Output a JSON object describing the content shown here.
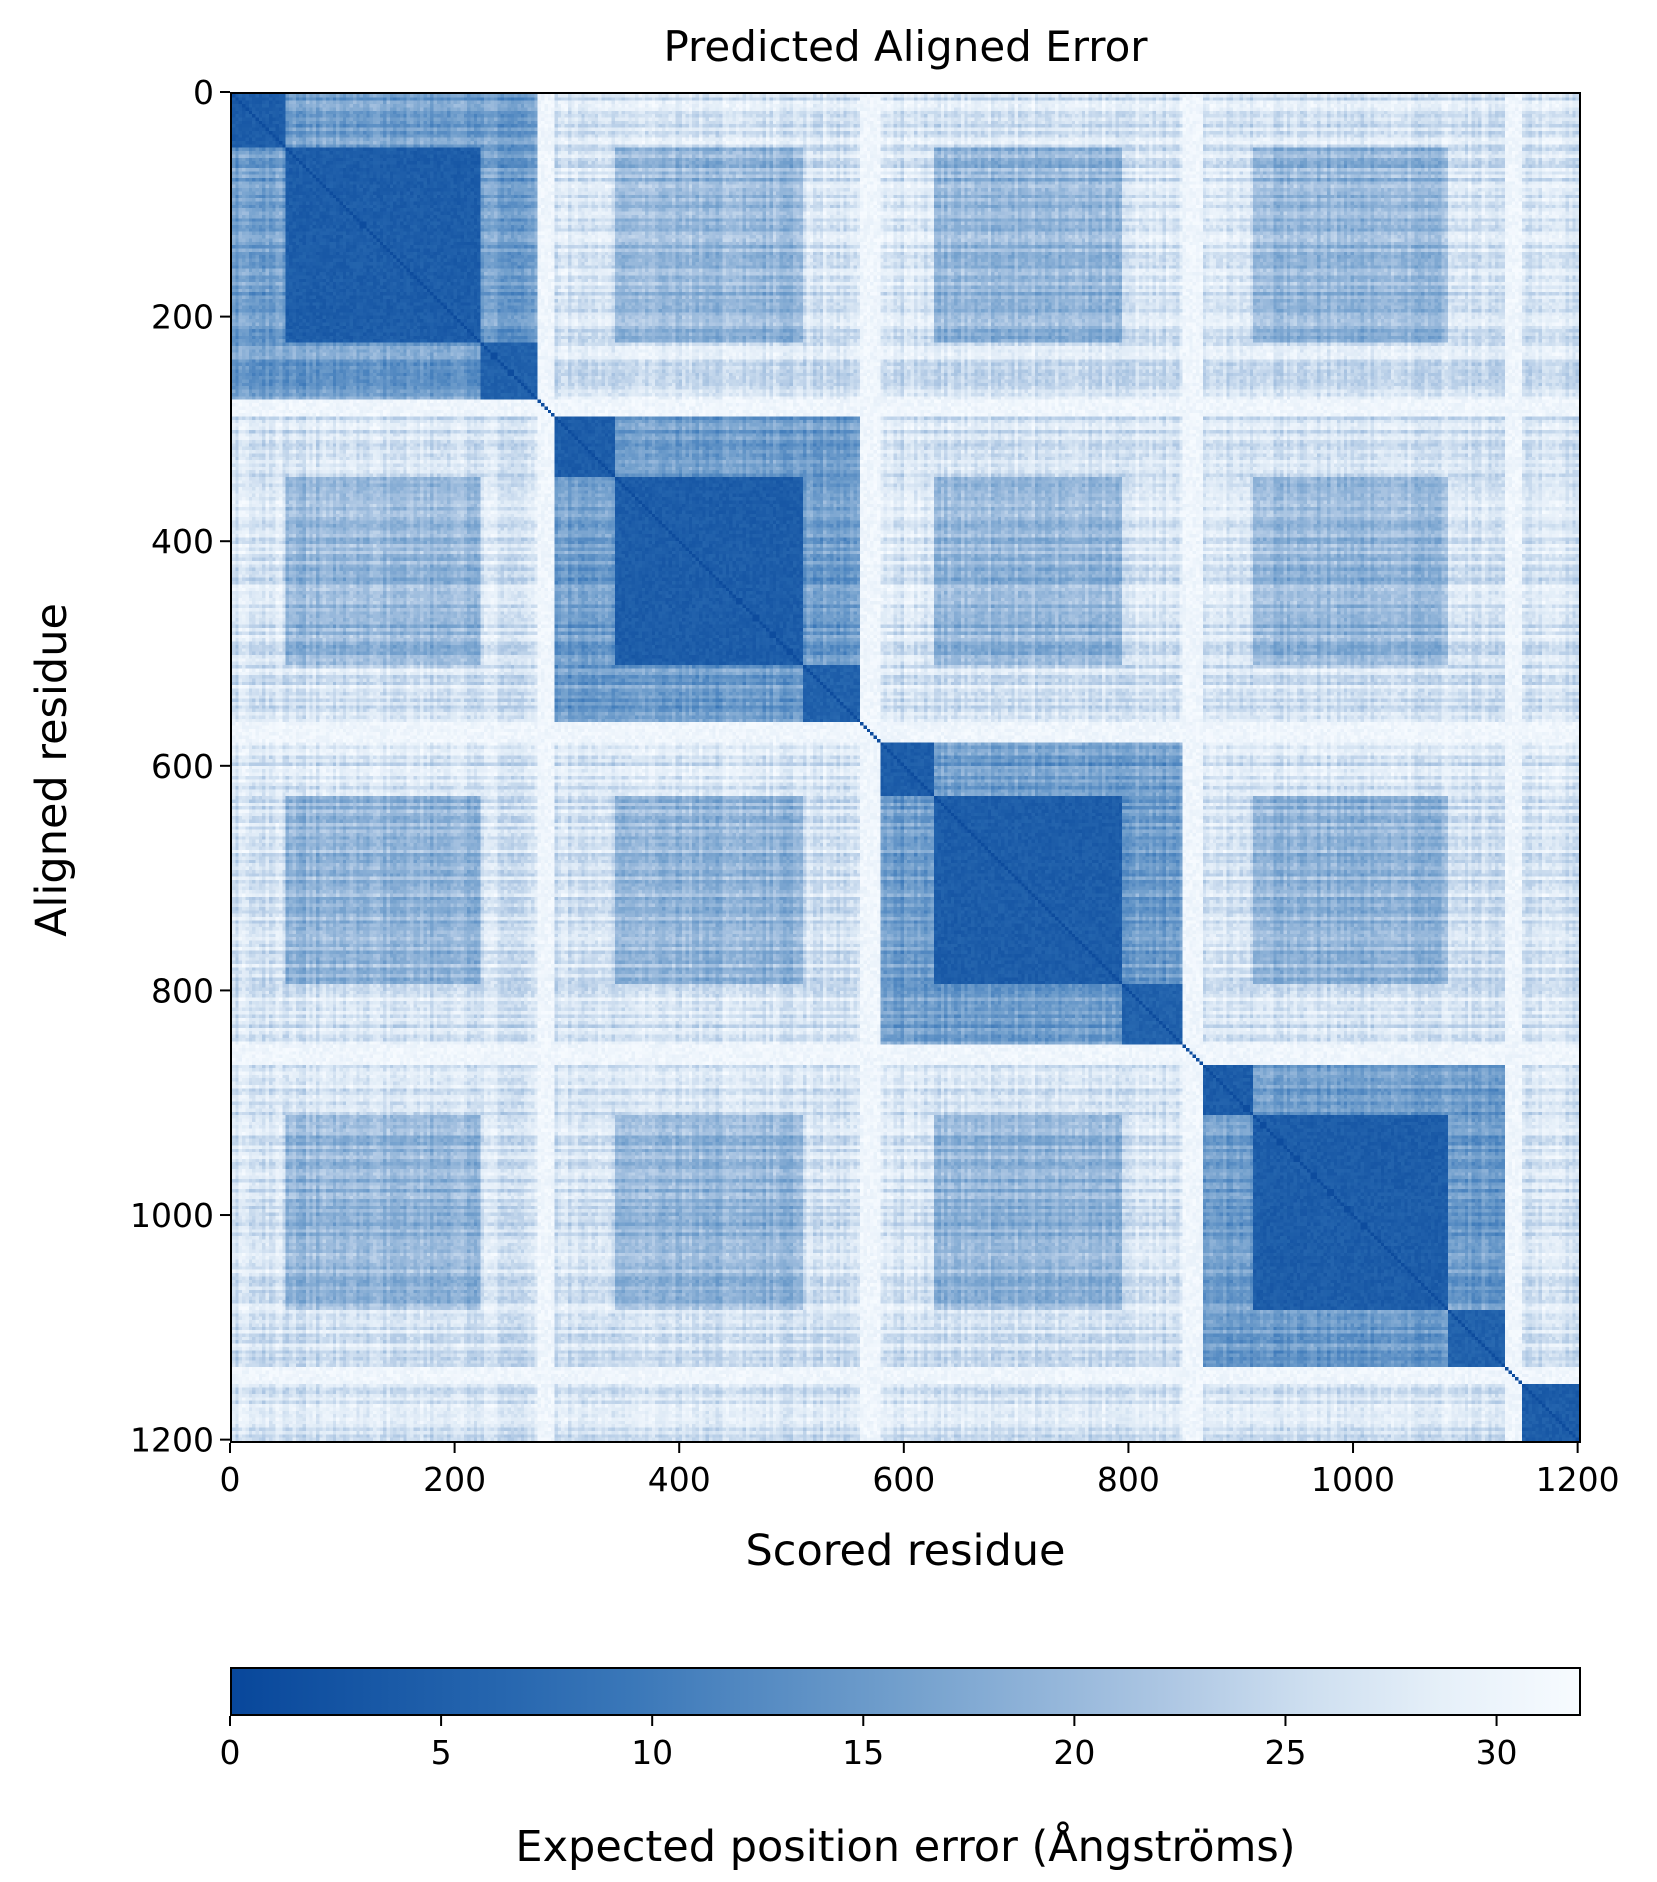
{
  "chart_data": {
    "type": "heatmap",
    "title": "Predicted Aligned Error",
    "xlabel": "Scored residue",
    "ylabel": "Aligned residue",
    "xlim": [
      0,
      1203
    ],
    "ylim": [
      1203,
      0
    ],
    "x_ticks": [
      0,
      200,
      400,
      600,
      800,
      1000,
      1200
    ],
    "y_ticks": [
      0,
      200,
      400,
      600,
      800,
      1000,
      1200
    ],
    "colormap": "Blues_r",
    "colorbar": {
      "label": "Expected position error (Ångströms)",
      "min": 0,
      "max": 32,
      "ticks": [
        0,
        5,
        10,
        15,
        20,
        25,
        30
      ],
      "color_low": "#08479b",
      "color_high": "#f7fbff"
    },
    "domain_blocks": [
      {
        "start": 0,
        "end": 48,
        "mean_error": 3
      },
      {
        "start": 48,
        "end": 222,
        "mean_error": 3
      },
      {
        "start": 222,
        "end": 272,
        "mean_error": 4
      },
      {
        "start": 287,
        "end": 340,
        "mean_error": 3
      },
      {
        "start": 340,
        "end": 508,
        "mean_error": 3
      },
      {
        "start": 508,
        "end": 560,
        "mean_error": 4
      },
      {
        "start": 577,
        "end": 625,
        "mean_error": 3
      },
      {
        "start": 625,
        "end": 795,
        "mean_error": 3
      },
      {
        "start": 795,
        "end": 848,
        "mean_error": 4
      },
      {
        "start": 865,
        "end": 912,
        "mean_error": 3
      },
      {
        "start": 912,
        "end": 1085,
        "mean_error": 3
      },
      {
        "start": 1085,
        "end": 1135,
        "mean_error": 4
      },
      {
        "start": 1152,
        "end": 1203,
        "mean_error": 3
      }
    ],
    "linker_gaps": [
      {
        "start": 272,
        "end": 287,
        "mean_error": 31
      },
      {
        "start": 560,
        "end": 577,
        "mean_error": 31
      },
      {
        "start": 848,
        "end": 865,
        "mean_error": 31
      },
      {
        "start": 1135,
        "end": 1152,
        "mean_error": 31
      }
    ],
    "inter_domain_error_range": [
      10,
      28
    ]
  }
}
